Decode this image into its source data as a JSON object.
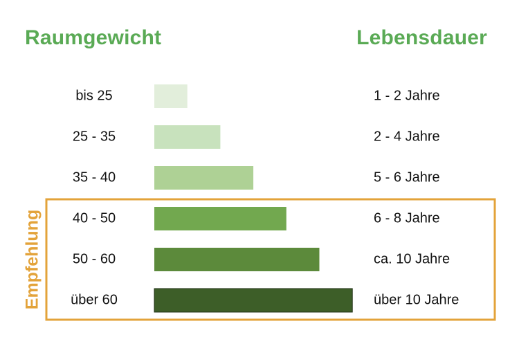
{
  "headings": {
    "left": "Raumgewicht",
    "right": "Lebensdauer"
  },
  "recommendation": {
    "label": "Empfehlung",
    "rows_from": 3,
    "rows_to": 5
  },
  "colors": {
    "heading": "#5aaa55",
    "recommendation": "#e3a33a",
    "bars": [
      "#e2eedb",
      "#c8e2bd",
      "#aed195",
      "#72a84f",
      "#5c8a3b",
      "#3d5e28"
    ]
  },
  "chart_data": {
    "type": "bar",
    "orientation": "horizontal",
    "title_left": "Raumgewicht",
    "title_right": "Lebensdauer",
    "categories": [
      "bis 25",
      "25 - 35",
      "35 - 40",
      "40 - 50",
      "50 - 60",
      "über 60"
    ],
    "values": [
      1,
      2,
      3,
      4,
      5,
      6
    ],
    "right_labels": [
      "1 - 2 Jahre",
      "2 - 4 Jahre",
      "5 - 6 Jahre",
      "6 - 8 Jahre",
      "ca. 10 Jahre",
      "über 10 Jahre"
    ],
    "xlim": [
      0,
      6
    ],
    "grid": false
  }
}
